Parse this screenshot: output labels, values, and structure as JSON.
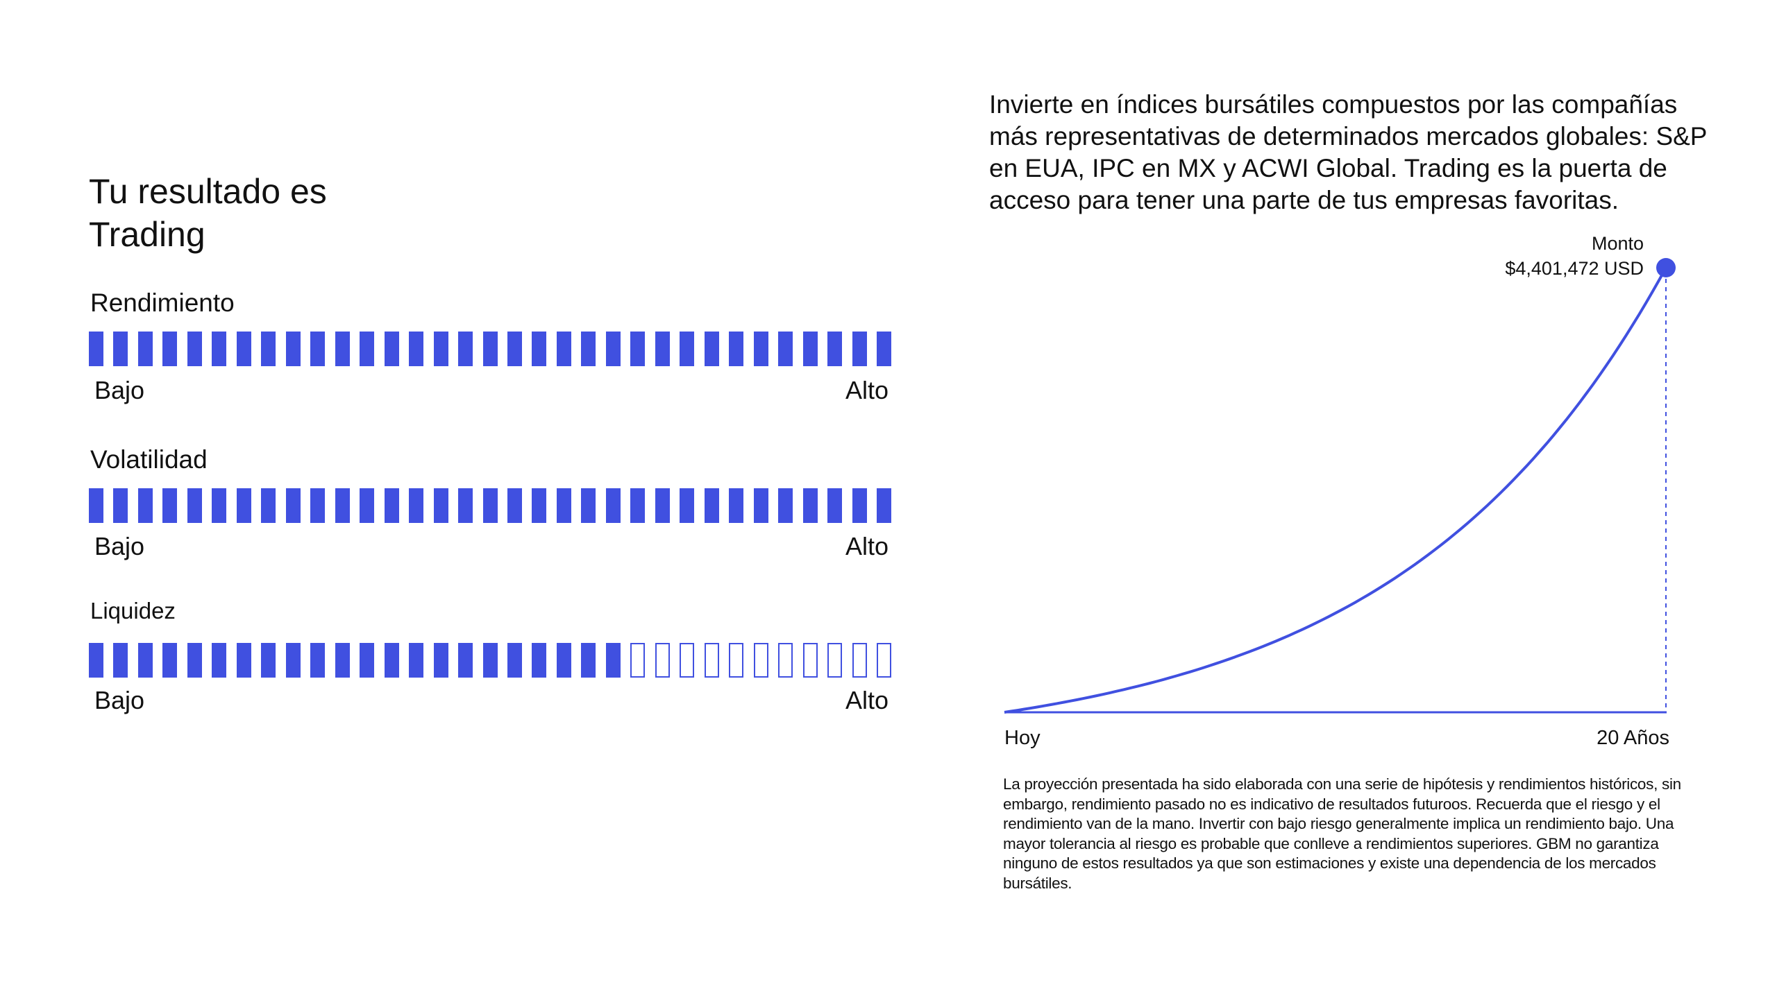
{
  "result_title": "Tu resultado es Trading",
  "metrics": [
    {
      "label": "Rendimiento",
      "filled": 33,
      "total": 33,
      "low": "Bajo",
      "high": "Alto"
    },
    {
      "label": "Volatilidad",
      "filled": 33,
      "total": 33,
      "low": "Bajo",
      "high": "Alto"
    },
    {
      "label": "Liquidez",
      "filled": 22,
      "total": 33,
      "low": "Bajo",
      "high": "Alto"
    }
  ],
  "intro": "Invierte en índices bursátiles compuestos por las compañías más representativas de determinados mercados globales: S&P en EUA, IPC en MX y ACWI Global. Trading es la puerta de acceso para tener una parte de tus empresas favoritas.",
  "colors": {
    "accent": "#4050e0"
  },
  "chart_data": {
    "type": "line",
    "x_start_label": "Hoy",
    "x_end_label": "20 Años",
    "x_range": [
      0,
      20
    ],
    "end_label": "Monto",
    "end_value_text": "$4,401,472 USD",
    "end_value": 4401472,
    "curve": "exponential growth from 0 at Hoy to end_value at 20 Años"
  },
  "disclaimer": "La proyección presentada ha sido elaborada con una serie de hipótesis y rendimientos históricos, sin embargo, rendimiento pasado no es indicativo de resultados futuroos. Recuerda que el riesgo y el rendimiento van de la mano. Invertir con bajo riesgo generalmente implica un rendimiento bajo. Una mayor tolerancia al riesgo es probable que conlleve a rendimientos superiores. GBM no garantiza ninguno de estos resultados ya que son estimaciones y existe una dependencia de los mercados bursátiles."
}
